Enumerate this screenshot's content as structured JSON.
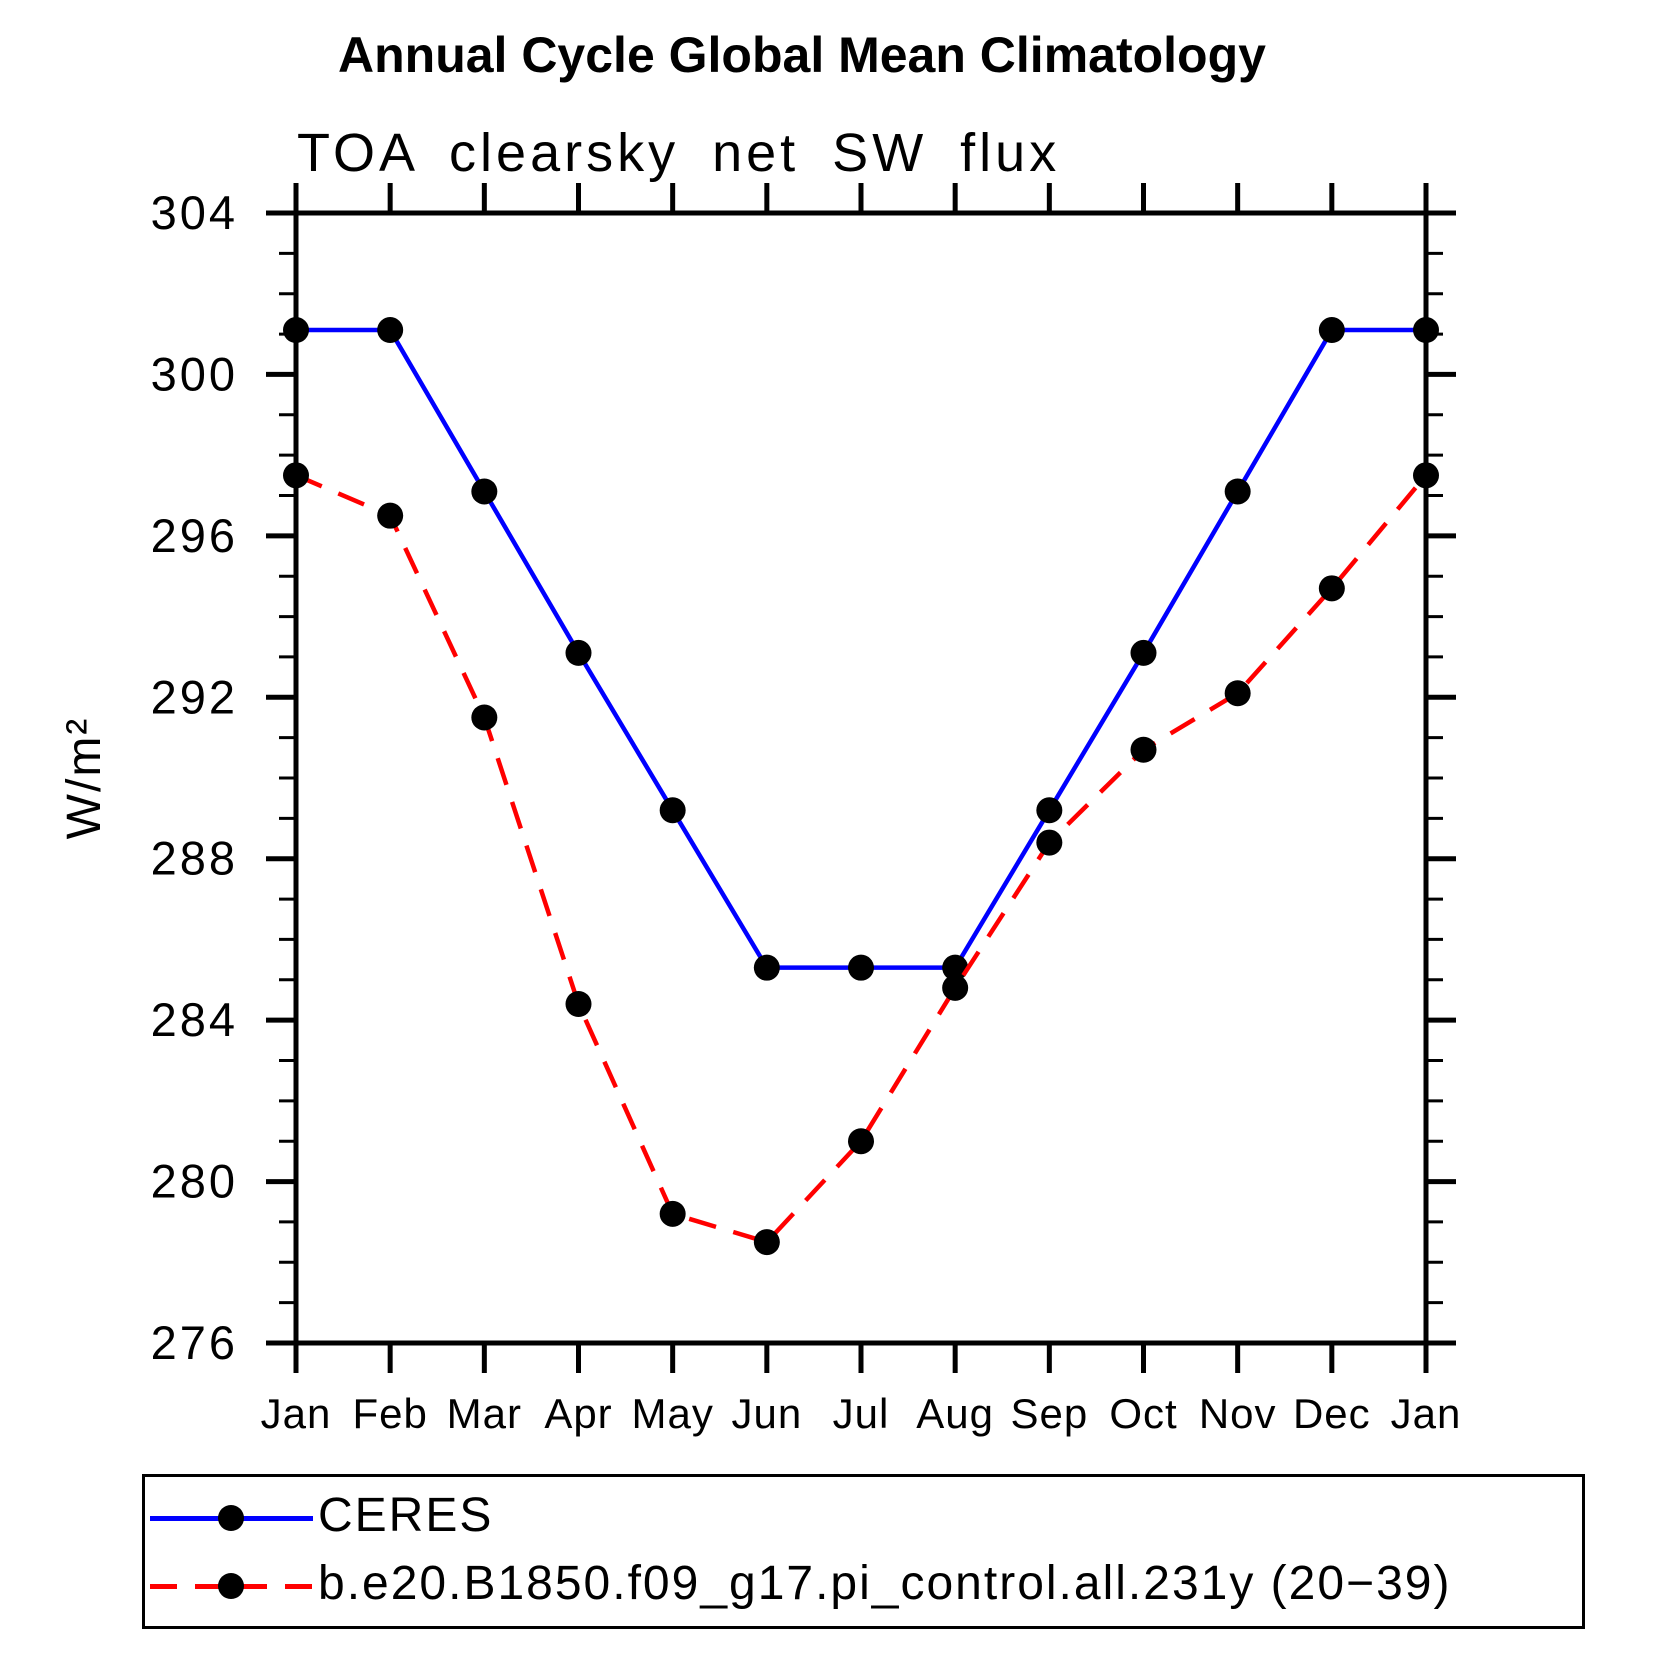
{
  "title": "Annual Cycle Global Mean Climatology",
  "subtitle": "TOA clearsky net SW flux",
  "chart_data": {
    "type": "line",
    "title": "Annual Cycle Global Mean Climatology",
    "subtitle": "TOA clearsky net SW flux",
    "x_categories": [
      "Jan",
      "Feb",
      "Mar",
      "Apr",
      "May",
      "Jun",
      "Jul",
      "Aug",
      "Sep",
      "Oct",
      "Nov",
      "Dec",
      "Jan"
    ],
    "xlabel": "",
    "ylabel": "W/m²",
    "ylim": [
      276,
      304
    ],
    "ytick_major_interval": 4,
    "ytick_minor_interval": 1,
    "grid": false,
    "legend_position": "bottom",
    "series": [
      {
        "name": "CERES",
        "color": "#0000ff",
        "line_style": "solid",
        "marker": "circle",
        "marker_color": "#000000",
        "values": [
          301.1,
          301.1,
          297.1,
          293.1,
          289.2,
          285.3,
          285.3,
          285.3,
          289.2,
          293.1,
          297.1,
          301.1,
          301.1
        ]
      },
      {
        "name": "b.e20.B1850.f09_g17.pi_control.all.231y (20−39)",
        "color": "#ff0000",
        "line_style": "dashed",
        "marker": "circle",
        "marker_color": "#000000",
        "values": [
          297.5,
          296.5,
          291.5,
          284.4,
          279.2,
          278.5,
          281.0,
          284.8,
          288.4,
          290.7,
          292.1,
          294.7,
          297.5
        ]
      }
    ]
  }
}
